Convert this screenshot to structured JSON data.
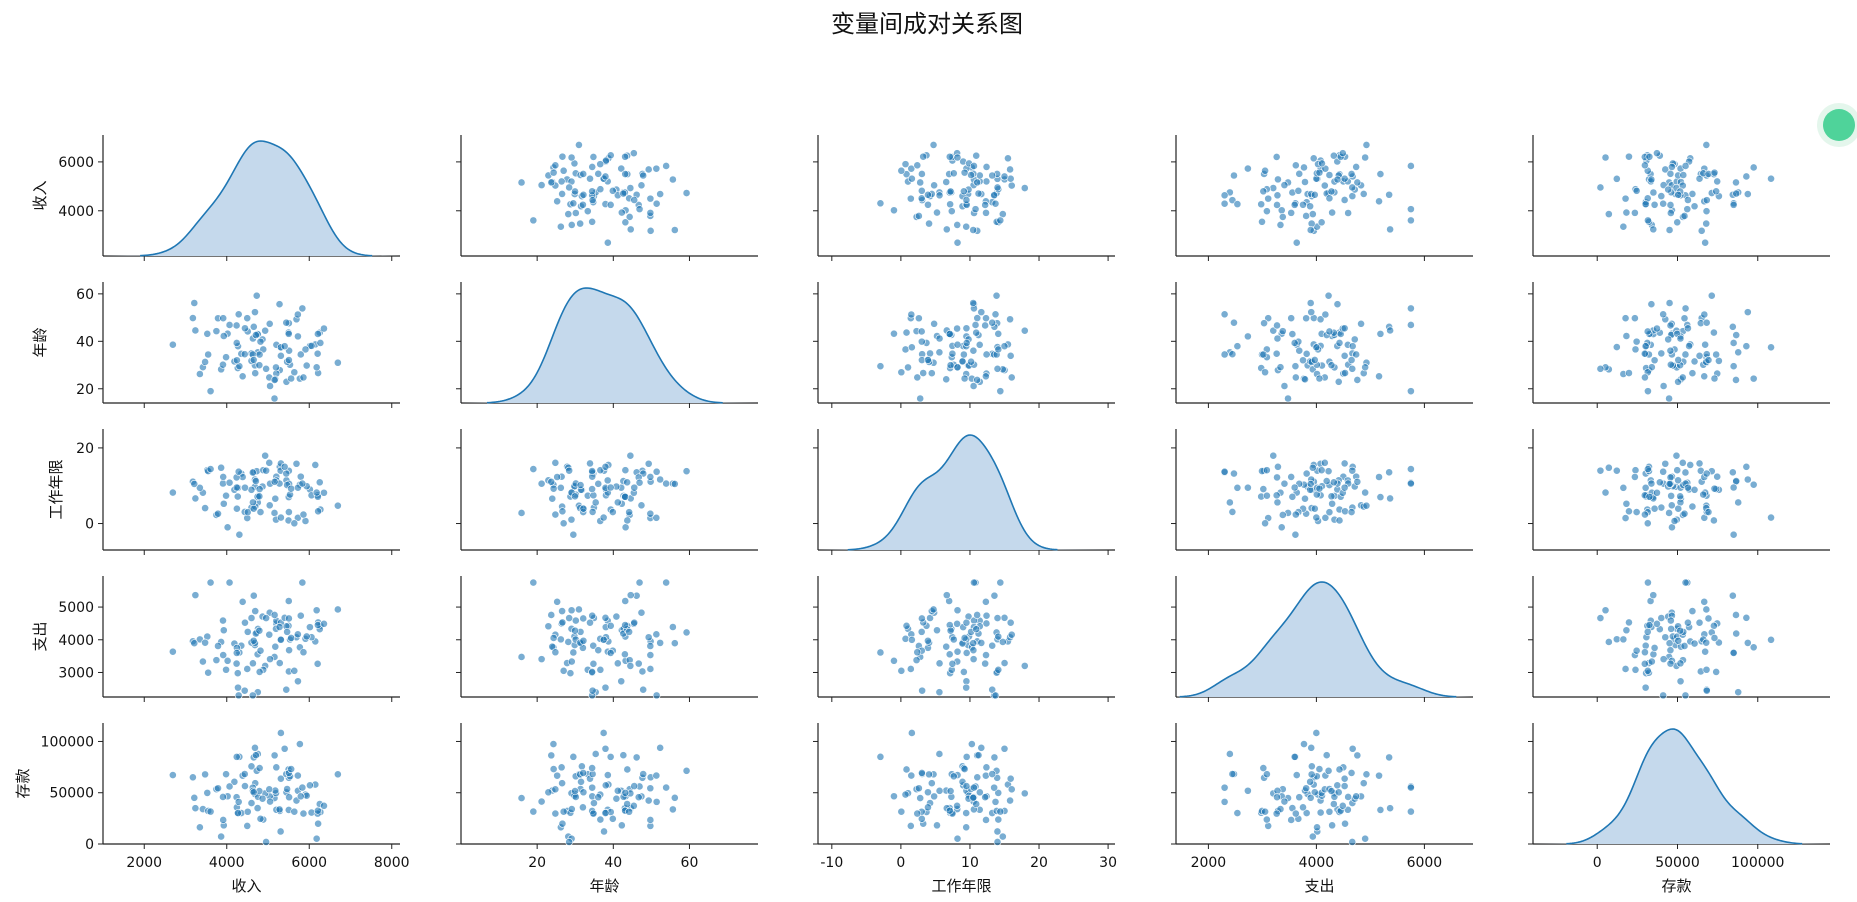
{
  "figure": {
    "title": "变量间成对关系图",
    "point_color": "#1f77b4",
    "kde_fill": "#c5d9ec",
    "kde_line": "#1f77b4"
  },
  "chart_data": {
    "type": "scatter",
    "variables": [
      "收入",
      "年龄",
      "工作年限",
      "支出",
      "存款"
    ],
    "axes": {
      "收入": {
        "lim": [
          1000,
          8200
        ],
        "ticks": [
          2000,
          4000,
          6000,
          8000
        ],
        "row_ticks": [
          4000,
          6000
        ],
        "row_lim": [
          2150,
          7100
        ]
      },
      "年龄": {
        "lim": [
          0,
          78
        ],
        "ticks": [
          20,
          40,
          60
        ],
        "row_ticks": [
          20,
          40,
          60
        ],
        "row_lim": [
          14,
          65
        ]
      },
      "工作年限": {
        "lim": [
          -12,
          31
        ],
        "ticks": [
          -10,
          0,
          10,
          20,
          30
        ],
        "row_ticks": [
          0,
          20
        ],
        "row_lim": [
          -7,
          25
        ]
      },
      "支出": {
        "lim": [
          1400,
          6900
        ],
        "ticks": [
          2000,
          4000,
          6000
        ],
        "row_ticks": [
          3000,
          4000,
          5000
        ],
        "row_lim": [
          2250,
          5950
        ]
      },
      "存款": {
        "lim": [
          -40000,
          145000
        ],
        "ticks": [
          0,
          50000,
          100000
        ],
        "row_ticks": [
          0,
          50000,
          100000
        ],
        "row_lim": [
          0,
          118000
        ]
      }
    },
    "diagonal": "kde",
    "off_diagonal": "scatter",
    "n_points": 100,
    "stats": {
      "收入": {
        "mean": 4950,
        "sd": 860,
        "min": 2400,
        "max": 6900
      },
      "年龄": {
        "mean": 35.5,
        "sd": 9.5,
        "min": 15,
        "max": 63
      },
      "工作年限": {
        "mean": 8.5,
        "sd": 5.0,
        "min": -5,
        "max": 23.5
      },
      "支出": {
        "mean": 4050,
        "sd": 760,
        "min": 2300,
        "max": 5750
      },
      "存款": {
        "mean": 50000,
        "sd": 21000,
        "min": 2000,
        "max": 112000
      }
    }
  }
}
